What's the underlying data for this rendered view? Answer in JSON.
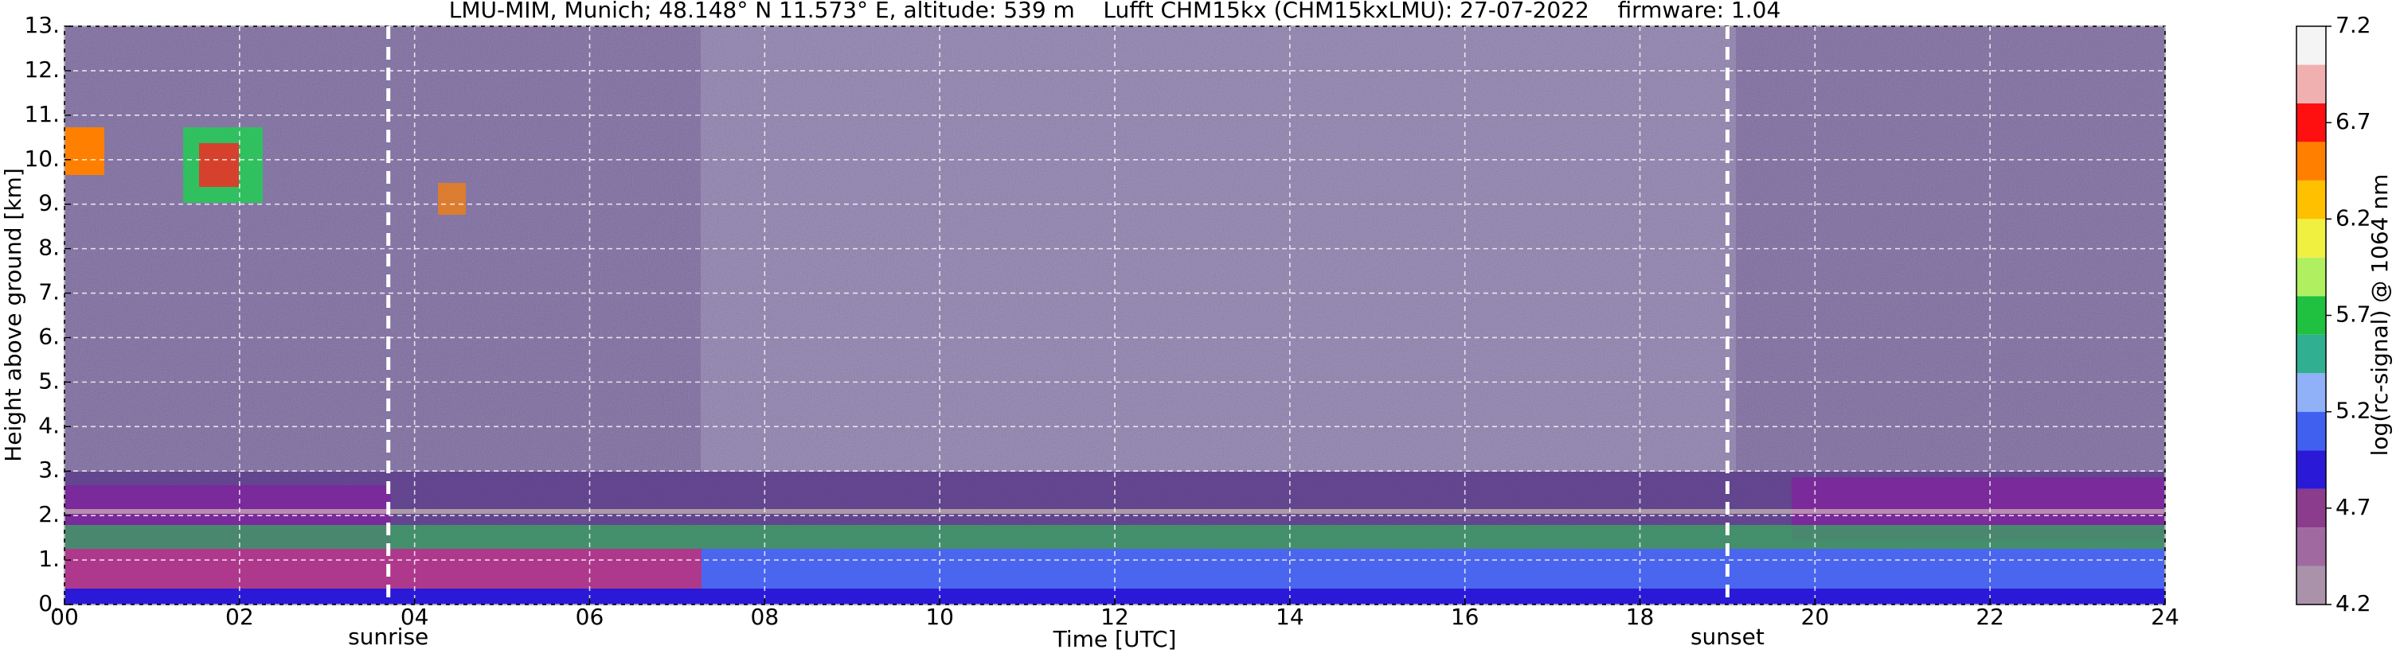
{
  "chart_data": {
    "type": "heatmap",
    "title": "LMU-MIM, Munich; 48.148° N 11.573° E, altitude: 539 m    Lufft CHM15kx (CHM15kxLMU): 27-07-2022    firmware: 1.04",
    "xlabel": "Time [UTC]",
    "ylabel": "Height above ground [km]",
    "xlim": [
      0,
      24
    ],
    "xticks": [
      {
        "value": 0,
        "label": "00"
      },
      {
        "value": 2,
        "label": "02"
      },
      {
        "value": 4,
        "label": "04"
      },
      {
        "value": 6,
        "label": "06"
      },
      {
        "value": 8,
        "label": "08"
      },
      10,
      12,
      14,
      16,
      18,
      20,
      22,
      24
    ],
    "ylim": [
      0,
      13
    ],
    "yticks": [
      {
        "value": 0,
        "label": "0."
      },
      {
        "value": 1,
        "label": "1."
      },
      {
        "value": 2,
        "label": "2."
      },
      {
        "value": 3,
        "label": "3."
      },
      {
        "value": 4,
        "label": "4."
      },
      {
        "value": 5,
        "label": "5."
      },
      {
        "value": 6,
        "label": "6."
      },
      {
        "value": 7,
        "label": "7."
      },
      {
        "value": 8,
        "label": "8."
      },
      {
        "value": 9,
        "label": "9."
      },
      {
        "value": 10,
        "label": "10."
      },
      {
        "value": 11,
        "label": "11."
      },
      {
        "value": 12,
        "label": "12."
      },
      {
        "value": 13,
        "label": "13."
      }
    ],
    "grid": true,
    "annotations": [
      {
        "label": "sunrise",
        "x": 3.7
      },
      {
        "label": "sunset",
        "x": 19.0
      }
    ],
    "colorbar": {
      "label": "log(rc-signal) @ 1064 nm",
      "lim": [
        4.2,
        7.2
      ],
      "ticks": [
        4.2,
        4.7,
        5.2,
        5.7,
        6.2,
        6.7,
        7.2
      ],
      "levels": [
        4.2,
        4.4,
        4.6,
        4.8,
        5.0,
        5.2,
        5.4,
        5.6,
        5.8,
        6.0,
        6.2,
        6.4,
        6.6,
        6.8,
        7.0,
        7.2
      ],
      "colors": [
        "#ab92ab",
        "#a06aa0",
        "#8c3c8c",
        "#2a1ad8",
        "#4060f0",
        "#90b0f8",
        "#30b090",
        "#20c040",
        "#b0f060",
        "#f0f040",
        "#ffc000",
        "#ff8000",
        "#ff1010",
        "#f0b0b0",
        "#f4f4f4"
      ]
    }
  }
}
